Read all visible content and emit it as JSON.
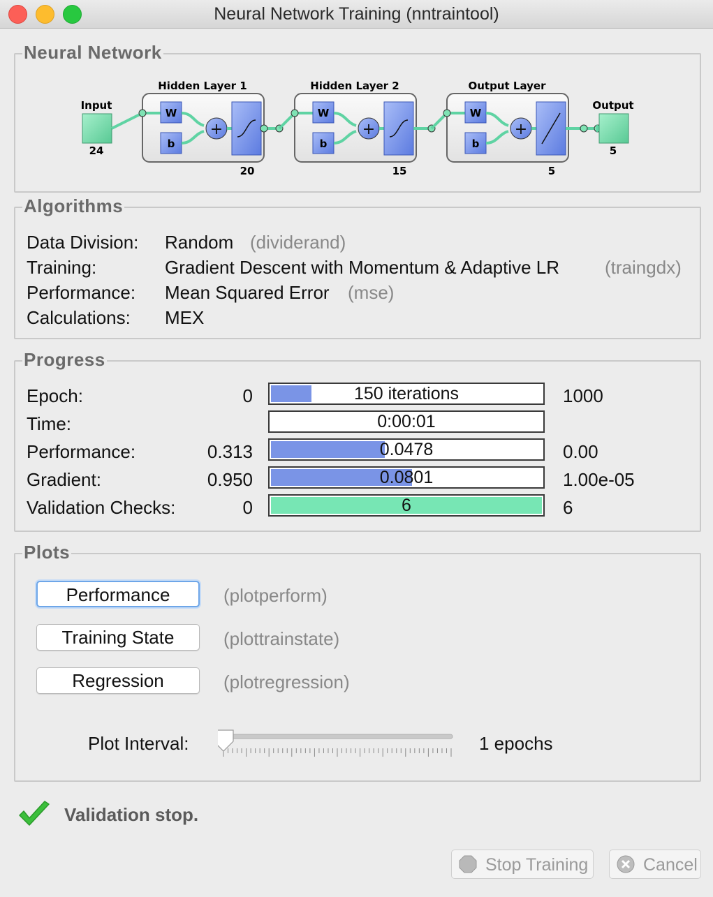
{
  "window": {
    "title": "Neural Network Training (nntraintool)"
  },
  "network": {
    "section_title": "Neural Network",
    "input": {
      "label": "Input",
      "size": "24"
    },
    "layers": [
      {
        "title": "Hidden Layer 1",
        "w": "W",
        "b": "b",
        "size": "20",
        "transfer": "sigmoid"
      },
      {
        "title": "Hidden Layer 2",
        "w": "W",
        "b": "b",
        "size": "15",
        "transfer": "sigmoid"
      },
      {
        "title": "Output Layer",
        "w": "W",
        "b": "b",
        "size": "5",
        "transfer": "linear"
      }
    ],
    "output": {
      "label": "Output",
      "size": "5"
    },
    "colors": {
      "io": "#7fe3b4",
      "weight": "#7f9cf0",
      "connector": "#5fd3a3"
    }
  },
  "algorithms": {
    "section_title": "Algorithms",
    "rows": [
      {
        "label": "Data Division:",
        "value": "Random",
        "func": "(dividerand)"
      },
      {
        "label": "Training:",
        "value": "Gradient Descent with Momentum & Adaptive LR",
        "func": "(traingdx)"
      },
      {
        "label": "Performance:",
        "value": "Mean Squared Error",
        "func": "(mse)"
      },
      {
        "label": "Calculations:",
        "value": "MEX",
        "func": ""
      }
    ]
  },
  "progress": {
    "section_title": "Progress",
    "rows": [
      {
        "label": "Epoch:",
        "start": "0",
        "bar_text": "150 iterations",
        "end": "1000",
        "fill_fraction": 0.15,
        "fill_color": "#7a94e6"
      },
      {
        "label": "Time:",
        "start": "",
        "bar_text": "0:00:01",
        "end": "",
        "fill_fraction": 0,
        "fill_color": "#7a94e6"
      },
      {
        "label": "Performance:",
        "start": "0.313",
        "bar_text": "0.0478",
        "end": "0.00",
        "fill_fraction": 0.42,
        "fill_color": "#7a94e6"
      },
      {
        "label": "Gradient:",
        "start": "0.950",
        "bar_text": "0.0801",
        "end": "1.00e-05",
        "fill_fraction": 0.52,
        "fill_color": "#7a94e6"
      },
      {
        "label": "Validation Checks:",
        "start": "0",
        "bar_text": "6",
        "end": "6",
        "fill_fraction": 1.0,
        "fill_color": "#77e6b4"
      }
    ]
  },
  "plots": {
    "section_title": "Plots",
    "buttons": [
      {
        "label": "Performance",
        "func": "(plotperform)"
      },
      {
        "label": "Training State",
        "func": "(plottrainstate)"
      },
      {
        "label": "Regression",
        "func": "(plotregression)"
      }
    ],
    "interval_label": "Plot Interval:",
    "interval_value": "1 epochs",
    "interval_fraction": 0.0
  },
  "status": {
    "icon": "checkmark-icon",
    "text": "Validation stop.",
    "color": "#3cbf3c"
  },
  "footer": {
    "stop_label": "Stop Training",
    "cancel_label": "Cancel"
  }
}
